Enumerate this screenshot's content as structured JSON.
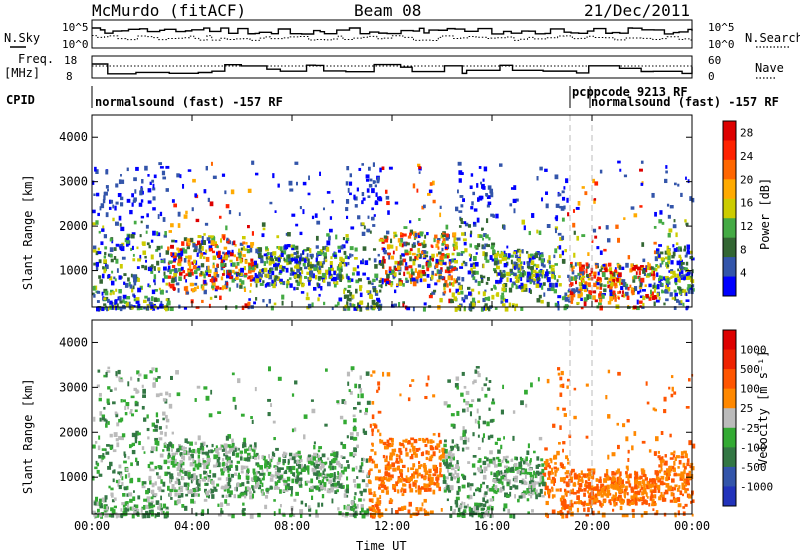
{
  "header": {
    "station": "McMurdo (fitACF)",
    "beam": "Beam 08",
    "date": "21/Dec/2011"
  },
  "sky_panel": {
    "left_label": "N.Sky",
    "right_label": "N.Search",
    "left_ticks": [
      "10^5",
      "10^0"
    ],
    "right_ticks": [
      "10^5",
      "10^0"
    ]
  },
  "freq_panel": {
    "left_label_line1": "Freq.",
    "left_label_line2": "[MHz]",
    "right_label": "Nave",
    "left_ticks": [
      "18",
      "8"
    ],
    "right_ticks": [
      "60",
      "0"
    ]
  },
  "cpid": {
    "label": "CPID",
    "segment1": "normalsound (fast) -157 RF",
    "segment2": "pcppcode 9213 RF",
    "segment3": "normalsound (fast) -157 RF"
  },
  "colors": {
    "power": [
      "#0000ff",
      "#3355aa",
      "#336633",
      "#44aa44",
      "#cccc00",
      "#ffaa00",
      "#ff6600",
      "#ff2200",
      "#dd0000"
    ],
    "velocity": [
      "#2233bb",
      "#3355aa",
      "#337744",
      "#33aa33",
      "#bbbbbb",
      "#ff8800",
      "#ff5500",
      "#ee2200",
      "#dd0000"
    ]
  },
  "chart_data": [
    {
      "type": "heatmap",
      "title": "Power",
      "xlabel": "Time UT",
      "ylabel": "Slant Range [km]",
      "x_ticks": [
        "00:00",
        "04:00",
        "08:00",
        "12:00",
        "16:00",
        "20:00",
        "00:00"
      ],
      "xlim_hours": [
        0,
        24
      ],
      "y_ticks": [
        "1000",
        "2000",
        "3000",
        "4000"
      ],
      "ylim_km": [
        180,
        4500
      ],
      "colorbar": {
        "label": "Power [dB]",
        "ticks": [
          "4",
          "8",
          "12",
          "16",
          "20",
          "24",
          "28"
        ],
        "range": [
          0,
          30
        ]
      },
      "scatter_regions_hours_km": [
        {
          "t": [
            3.0,
            6.5
          ],
          "r": [
            600,
            1800
          ],
          "level": "high"
        },
        {
          "t": [
            6.5,
            10.0
          ],
          "r": [
            700,
            1600
          ],
          "level": "mid"
        },
        {
          "t": [
            11.5,
            14.5
          ],
          "r": [
            700,
            1900
          ],
          "level": "high"
        },
        {
          "t": [
            16.0,
            18.5
          ],
          "r": [
            600,
            1500
          ],
          "level": "mid"
        },
        {
          "t": [
            19.0,
            22.5
          ],
          "r": [
            400,
            1200
          ],
          "level": "high"
        },
        {
          "t": [
            22.5,
            24.0
          ],
          "r": [
            500,
            1600
          ],
          "level": "mid"
        }
      ]
    },
    {
      "type": "heatmap",
      "title": "Velocity",
      "xlabel": "Time UT",
      "ylabel": "Slant Range [km]",
      "x_ticks": [
        "00:00",
        "04:00",
        "08:00",
        "12:00",
        "16:00",
        "20:00",
        "00:00"
      ],
      "xlim_hours": [
        0,
        24
      ],
      "y_ticks": [
        "1000",
        "2000",
        "3000",
        "4000"
      ],
      "ylim_km": [
        180,
        4500
      ],
      "colorbar": {
        "label": "Velocity [m s⁻¹]",
        "ticks": [
          "1000",
          "500",
          "100",
          "25",
          "-25",
          "-100",
          "-500",
          "-1000"
        ],
        "range": [
          -1000,
          1000
        ]
      }
    }
  ],
  "data_axis_label": "Time UT"
}
